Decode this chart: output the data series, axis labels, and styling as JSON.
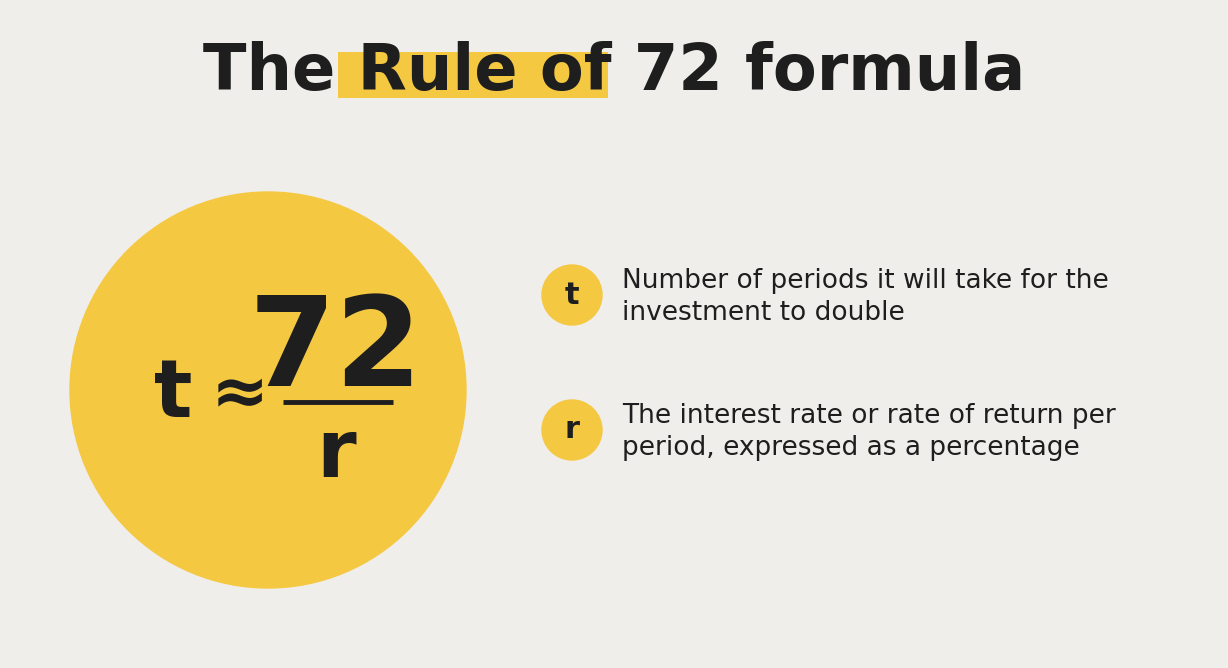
{
  "bg_color": "#f0eeeb",
  "title_color": "#1e1e1e",
  "title_highlight_bg": "#f5c842",
  "title_fontsize": 46,
  "circle_color": "#f5c842",
  "formula_color": "#1e1e1e",
  "t_fontsize": 58,
  "approx_fontsize": 50,
  "seventy_two_fontsize": 90,
  "r_fontsize": 58,
  "badge_color": "#f5c842",
  "badge_text_color": "#1e1e1e",
  "item1_line1": "Number of periods it will take for the",
  "item1_line2": "investment to double",
  "item2_line1": "The interest rate or rate of return per",
  "item2_line2": "period, expressed as a percentage",
  "desc_fontsize": 19,
  "badge_label_fontsize": 22
}
